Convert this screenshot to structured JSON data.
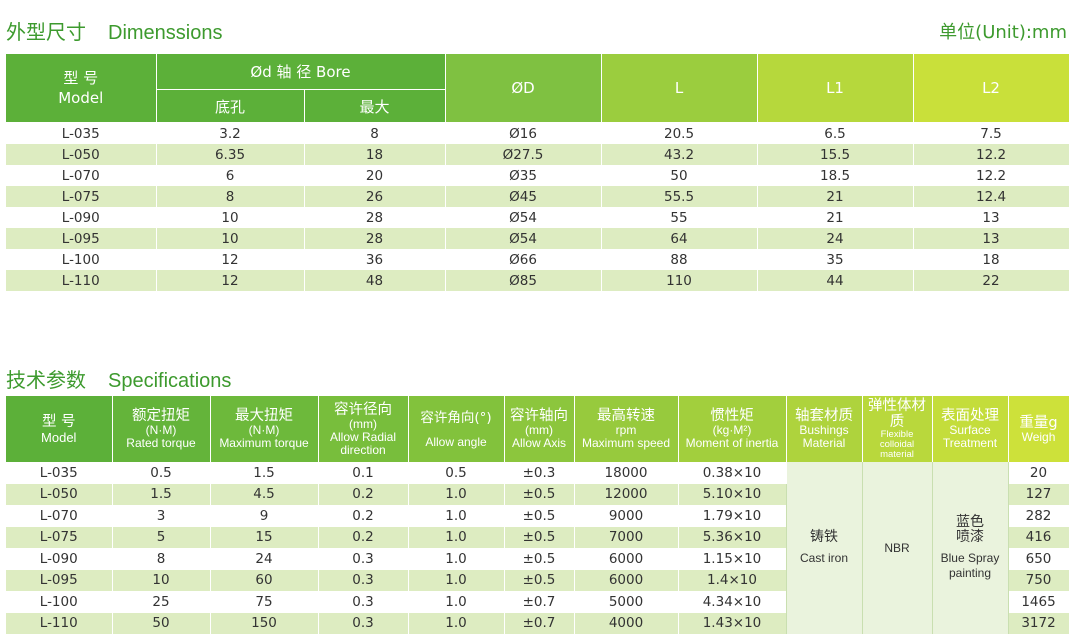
{
  "dimensions": {
    "title_cn": "外型尺寸",
    "title_en": "Dimenssions",
    "unit": "单位(Unit):mm",
    "headers": {
      "model_cn": "型 号",
      "model_en": "Model",
      "bore": "Ød 轴 径 Bore",
      "bore_min": "底孔",
      "bore_max": "最大",
      "od": "ØD",
      "l": "L",
      "l1": "L1",
      "l2": "L2"
    },
    "rows": [
      [
        "L-035",
        "3.2",
        "8",
        "Ø16",
        "20.5",
        "6.5",
        "7.5"
      ],
      [
        "L-050",
        "6.35",
        "18",
        "Ø27.5",
        "43.2",
        "15.5",
        "12.2"
      ],
      [
        "L-070",
        "6",
        "20",
        "Ø35",
        "50",
        "18.5",
        "12.2"
      ],
      [
        "L-075",
        "8",
        "26",
        "Ø45",
        "55.5",
        "21",
        "12.4"
      ],
      [
        "L-090",
        "10",
        "28",
        "Ø54",
        "55",
        "21",
        "13"
      ],
      [
        "L-095",
        "10",
        "28",
        "Ø54",
        "64",
        "24",
        "13"
      ],
      [
        "L-100",
        "12",
        "36",
        "Ø66",
        "88",
        "35",
        "18"
      ],
      [
        "L-110",
        "12",
        "48",
        "Ø85",
        "110",
        "44",
        "22"
      ]
    ]
  },
  "specifications": {
    "title_cn": "技术参数",
    "title_en": "Specifications",
    "headers": {
      "model_cn": "型 号",
      "model_en": "Model",
      "rated_cn": "额定扭矩",
      "rated_unit": "(N·M)",
      "rated_en": "Rated torque",
      "max_cn": "最大扭矩",
      "max_unit": "(N·M)",
      "max_en": "Maximum torque",
      "radial_cn": "容许径向",
      "radial_unit": "(mm)",
      "radial_en": "Allow Radial direction",
      "angle_cn": "容许角向(°)",
      "angle_en": "Allow angle",
      "axis_cn": "容许轴向",
      "axis_unit": "(mm)",
      "axis_en": "Allow Axis",
      "speed_cn": "最高转速",
      "speed_unit": "rpm",
      "speed_en": "Maximum speed",
      "inertia_cn": "惯性矩",
      "inertia_unit": "(kg·M²)",
      "inertia_en": "Moment of inertia",
      "bush_cn": "轴套材质",
      "bush_en": "Bushings Material",
      "elastic_cn": "弹性体材质",
      "elastic_en": "Flexible colloidal material",
      "surface_cn": "表面处理",
      "surface_en": "Surface Treatment",
      "weight_cn": "重量g",
      "weight_en": "Weigh"
    },
    "bushing_material_cn": "铸铁",
    "bushing_material_en": "Cast iron",
    "elastic_material": "NBR",
    "surface_cn": "蓝色喷漆",
    "surface_en": "Blue Spray painting",
    "rows": [
      [
        "L-035",
        "0.5",
        "1.5",
        "0.1",
        "0.5",
        "±0.3",
        "18000",
        "0.38×10",
        "20"
      ],
      [
        "L-050",
        "1.5",
        "4.5",
        "0.2",
        "1.0",
        "±0.5",
        "12000",
        "5.10×10",
        "127"
      ],
      [
        "L-070",
        "3",
        "9",
        "0.2",
        "1.0",
        "±0.5",
        "9000",
        "1.79×10",
        "282"
      ],
      [
        "L-075",
        "5",
        "15",
        "0.2",
        "1.0",
        "±0.5",
        "7000",
        "5.36×10",
        "416"
      ],
      [
        "L-090",
        "8",
        "24",
        "0.3",
        "1.0",
        "±0.5",
        "6000",
        "1.15×10",
        "650"
      ],
      [
        "L-095",
        "10",
        "60",
        "0.3",
        "1.0",
        "±0.5",
        "6000",
        "1.4×10",
        "750"
      ],
      [
        "L-100",
        "25",
        "75",
        "0.3",
        "1.0",
        "±0.7",
        "5000",
        "4.34×10",
        "1465"
      ],
      [
        "L-110",
        "50",
        "150",
        "0.3",
        "1.0",
        "±0.7",
        "4000",
        "1.43×10",
        "3172"
      ]
    ]
  }
}
